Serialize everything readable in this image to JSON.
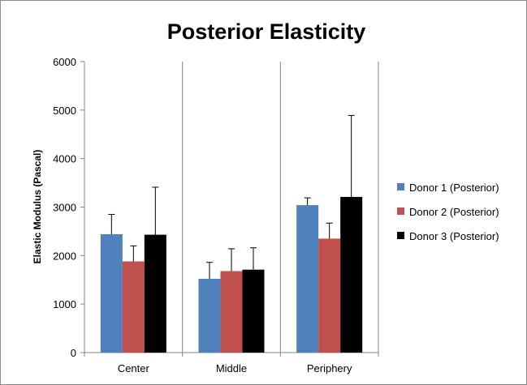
{
  "chart_data": {
    "type": "bar",
    "title": "Posterior Elasticity",
    "xlabel": "",
    "ylabel": "Elastic Modulus (Pascal)",
    "categories": [
      "Center",
      "Middle",
      "Periphery"
    ],
    "ylim": [
      0,
      6000
    ],
    "yticks": [
      0,
      1000,
      2000,
      3000,
      4000,
      5000,
      6000
    ],
    "grid": "vertical lines between categories",
    "legend_position": "right",
    "series": [
      {
        "name": "Donor 1 (Posterior)",
        "color": "#4f81bd",
        "values": [
          2440,
          1520,
          3040
        ],
        "errors": [
          410,
          340,
          150
        ]
      },
      {
        "name": "Donor 2 (Posterior)",
        "color": "#c0504d",
        "values": [
          1880,
          1680,
          2350
        ],
        "errors": [
          320,
          460,
          320
        ]
      },
      {
        "name": "Donor 3 (Posterior)",
        "color": "#000000",
        "values": [
          2430,
          1710,
          3210
        ],
        "errors": [
          980,
          450,
          1680
        ]
      }
    ]
  }
}
